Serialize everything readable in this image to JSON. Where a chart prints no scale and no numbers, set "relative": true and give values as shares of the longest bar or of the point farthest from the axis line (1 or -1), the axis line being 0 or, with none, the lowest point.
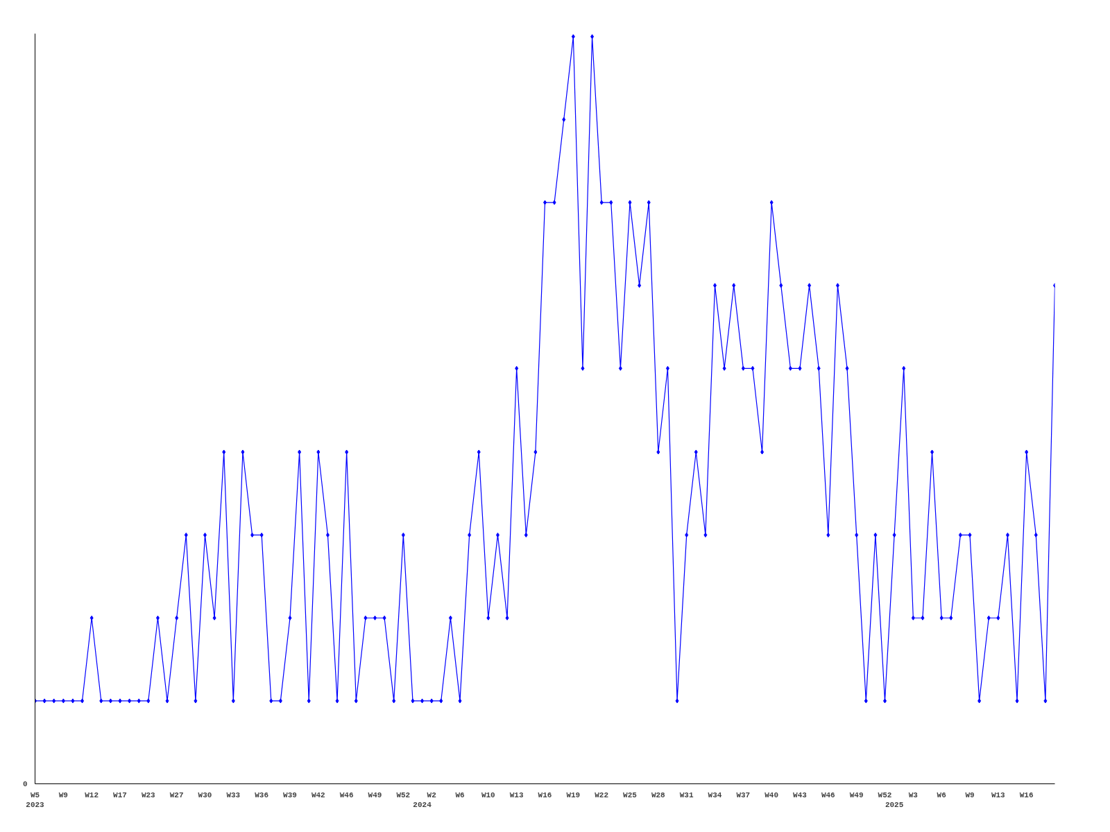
{
  "chart_data": {
    "type": "line",
    "relative": true,
    "marker": "diamond",
    "line_style": "solid",
    "grid": false,
    "categories": [
      "W5\n2023",
      null,
      null,
      "W9",
      null,
      null,
      "W12",
      null,
      null,
      "W17",
      null,
      null,
      "W23",
      null,
      null,
      "W27",
      null,
      null,
      "W30",
      null,
      null,
      "W33",
      null,
      null,
      "W36",
      null,
      null,
      "W39",
      null,
      null,
      "W42",
      null,
      null,
      "W46",
      null,
      null,
      "W49",
      null,
      null,
      "W52",
      null,
      "\n2024",
      "W2",
      null,
      null,
      "W6",
      null,
      null,
      "W10",
      null,
      null,
      "W13",
      null,
      null,
      "W16",
      null,
      null,
      "W19",
      null,
      null,
      "W22",
      null,
      null,
      "W25",
      null,
      null,
      "W28",
      null,
      null,
      "W31",
      null,
      null,
      "W34",
      null,
      null,
      "W37",
      null,
      null,
      "W40",
      null,
      null,
      "W43",
      null,
      null,
      "W46",
      null,
      null,
      "W49",
      null,
      null,
      "W52",
      "\n2025",
      null,
      "W3",
      null,
      null,
      "W6",
      null,
      null,
      "W9",
      null,
      null,
      "W13",
      null,
      null,
      "W16",
      null,
      null,
      null
    ],
    "series": [
      {
        "color": "#0000ff",
        "values": [
          0.111,
          0.111,
          0.111,
          0.111,
          0.111,
          0.111,
          0.222,
          0.111,
          0.111,
          0.111,
          0.111,
          0.111,
          0.111,
          0.222,
          0.111,
          0.222,
          0.333,
          0.111,
          0.333,
          0.222,
          0.444,
          0.111,
          0.444,
          0.333,
          0.333,
          0.111,
          0.111,
          0.222,
          0.444,
          0.111,
          0.444,
          0.333,
          0.111,
          0.444,
          0.111,
          0.222,
          0.222,
          0.222,
          0.111,
          0.333,
          0.111,
          0.111,
          0.111,
          0.111,
          0.222,
          0.111,
          0.333,
          0.444,
          0.222,
          0.333,
          0.222,
          0.556,
          0.333,
          0.444,
          0.778,
          0.778,
          0.889,
          1,
          0.556,
          1,
          0.778,
          0.778,
          0.556,
          0.778,
          0.667,
          0.778,
          0.444,
          0.556,
          0.111,
          0.333,
          0.444,
          0.333,
          0.667,
          0.556,
          0.667,
          0.556,
          0.556,
          0.444,
          0.778,
          0.667,
          0.556,
          0.556,
          0.667,
          0.556,
          0.333,
          0.667,
          0.556,
          0.333,
          0.111,
          0.333,
          0.111,
          0.333,
          0.556,
          0.222,
          0.222,
          0.444,
          0.222,
          0.222,
          0.333,
          0.333,
          0.111,
          0.222,
          0.222,
          0.333,
          0.111,
          0.444,
          0.333,
          0.111,
          0.667
        ]
      }
    ],
    "annotations": [
      "0"
    ]
  }
}
